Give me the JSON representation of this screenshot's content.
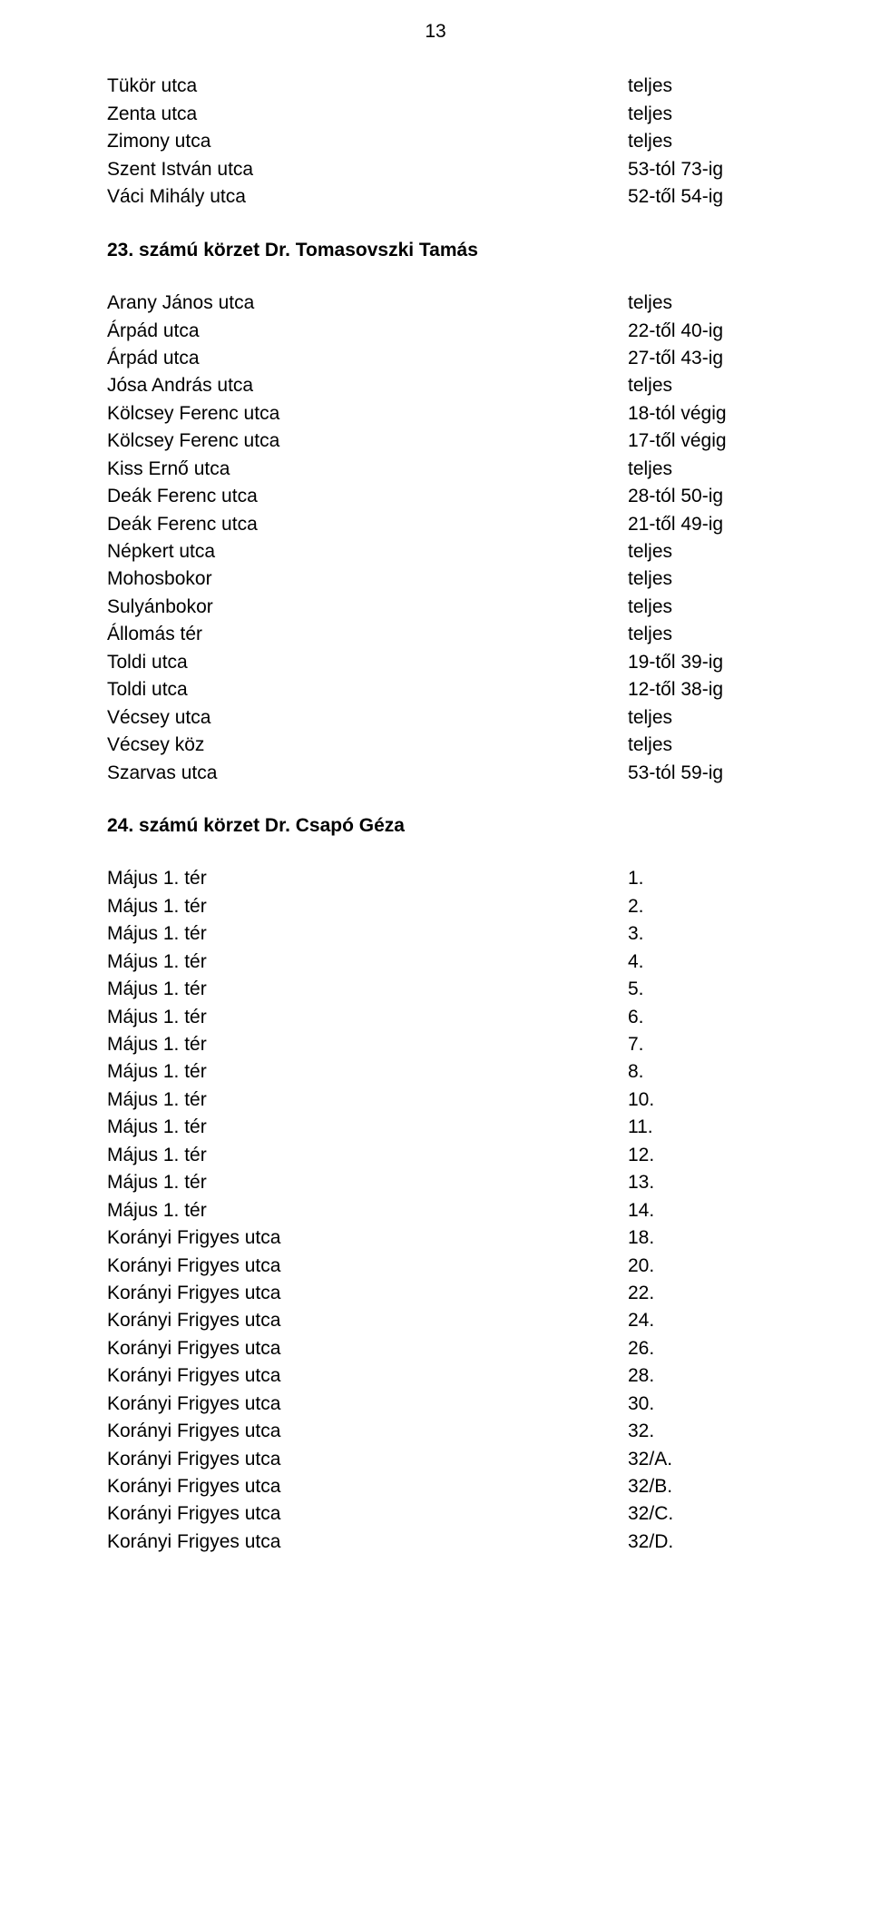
{
  "page_number": "13",
  "section_top": [
    {
      "l": "Tükör utca",
      "r": "teljes"
    },
    {
      "l": "Zenta utca",
      "r": "teljes"
    },
    {
      "l": "Zimony utca",
      "r": "teljes"
    },
    {
      "l": "Szent István utca",
      "r": "53-tól 73-ig"
    },
    {
      "l": "Váci Mihály utca",
      "r": "52-től 54-ig"
    }
  ],
  "district23_title": "23. számú körzet Dr. Tomasovszki Tamás",
  "section23": [
    {
      "l": "Arany János utca",
      "r": "teljes"
    },
    {
      "l": "Árpád utca",
      "r": "22-től 40-ig"
    },
    {
      "l": "Árpád utca",
      "r": "27-től 43-ig"
    },
    {
      "l": "Jósa András utca",
      "r": "teljes"
    },
    {
      "l": "Kölcsey Ferenc utca",
      "r": "18-tól végig"
    },
    {
      "l": "Kölcsey Ferenc utca",
      "r": "17-től végig"
    },
    {
      "l": "Kiss Ernő utca",
      "r": "teljes"
    },
    {
      "l": "Deák Ferenc utca",
      "r": "28-tól 50-ig"
    },
    {
      "l": "Deák Ferenc utca",
      "r": "21-től 49-ig"
    },
    {
      "l": "Népkert utca",
      "r": "teljes"
    },
    {
      "l": "Mohosbokor",
      "r": "teljes"
    },
    {
      "l": "Sulyánbokor",
      "r": "teljes"
    },
    {
      "l": "Állomás tér",
      "r": "teljes"
    },
    {
      "l": "Toldi utca",
      "r": "19-től 39-ig"
    },
    {
      "l": "Toldi utca",
      "r": "12-től 38-ig"
    },
    {
      "l": "Vécsey utca",
      "r": "teljes"
    },
    {
      "l": "Vécsey köz",
      "r": "teljes"
    },
    {
      "l": "Szarvas utca",
      "r": "53-tól 59-ig"
    }
  ],
  "district24_title": "24. számú körzet Dr. Csapó Géza",
  "section24": [
    {
      "l": "Május 1. tér",
      "r": "1."
    },
    {
      "l": "Május 1. tér",
      "r": "2."
    },
    {
      "l": "Május 1. tér",
      "r": "3."
    },
    {
      "l": "Május 1. tér",
      "r": "4."
    },
    {
      "l": "Május 1. tér",
      "r": "5."
    },
    {
      "l": "Május 1. tér",
      "r": "6."
    },
    {
      "l": "Május 1. tér",
      "r": "7."
    },
    {
      "l": "Május 1. tér",
      "r": "8."
    },
    {
      "l": "Május 1. tér",
      "r": "10."
    },
    {
      "l": "Május 1. tér",
      "r": "11."
    },
    {
      "l": "Május 1. tér",
      "r": "12."
    },
    {
      "l": "Május 1. tér",
      "r": "13."
    },
    {
      "l": "Május 1. tér",
      "r": "14."
    },
    {
      "l": "Korányi Frigyes utca",
      "r": "18."
    },
    {
      "l": "Korányi Frigyes utca",
      "r": "20."
    },
    {
      "l": "Korányi Frigyes utca",
      "r": "22."
    },
    {
      "l": "Korányi Frigyes utca",
      "r": "24."
    },
    {
      "l": "Korányi Frigyes utca",
      "r": "26."
    },
    {
      "l": "Korányi Frigyes utca",
      "r": "28."
    },
    {
      "l": "Korányi Frigyes utca",
      "r": "30."
    },
    {
      "l": "Korányi Frigyes utca",
      "r": "32."
    },
    {
      "l": "Korányi Frigyes utca",
      "r": "32/A."
    },
    {
      "l": "Korányi Frigyes utca",
      "r": "32/B."
    },
    {
      "l": "Korányi Frigyes utca",
      "r": "32/C."
    },
    {
      "l": "Korányi Frigyes utca",
      "r": "32/D."
    }
  ]
}
